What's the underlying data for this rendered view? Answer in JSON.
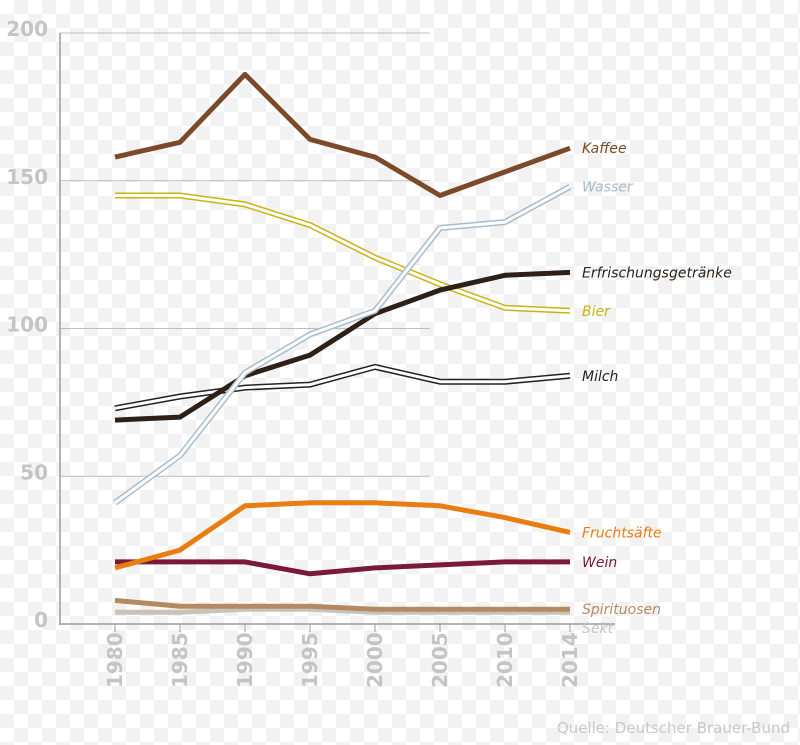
{
  "chart_data": {
    "type": "line",
    "title": "",
    "xlabel": "",
    "ylabel": "",
    "x": [
      "1980",
      "1985",
      "1990",
      "1995",
      "2000",
      "2005",
      "2010",
      "2014"
    ],
    "ylim": [
      0,
      200
    ],
    "yticks": [
      "0",
      "50",
      "100",
      "150",
      "200"
    ],
    "grid": true,
    "source": "Quelle: Deutscher Brauer-Bund",
    "series": [
      {
        "name": "Kaffee",
        "color": "#7a4a2a",
        "outline": false,
        "values": [
          158,
          163,
          186,
          164,
          158,
          145,
          153,
          161
        ]
      },
      {
        "name": "Wasser",
        "color": "#a9bccb",
        "outline": true,
        "values": [
          41,
          57,
          85,
          98,
          106,
          134,
          136,
          148
        ]
      },
      {
        "name": "Erfrischungsgetränke",
        "color": "#2e2016",
        "outline": false,
        "values": [
          69,
          70,
          84,
          91,
          105,
          113,
          118,
          119
        ]
      },
      {
        "name": "Bier",
        "color": "#c9b412",
        "outline": true,
        "values": [
          145,
          145,
          142,
          135,
          124,
          115,
          107,
          106
        ]
      },
      {
        "name": "Milch",
        "color": "#222222",
        "outline": true,
        "values": [
          73,
          77,
          80,
          81,
          87,
          82,
          82,
          84
        ]
      },
      {
        "name": "Fruchtsäfte",
        "color": "#ea7d12",
        "outline": false,
        "values": [
          19,
          25,
          40,
          41,
          41,
          40,
          36,
          31
        ]
      },
      {
        "name": "Wein",
        "color": "#7a1a3a",
        "outline": false,
        "values": [
          21,
          21,
          21,
          17,
          19,
          20,
          21,
          21
        ]
      },
      {
        "name": "Spirituosen",
        "color": "#b58a62",
        "outline": false,
        "values": [
          8,
          6,
          6,
          6,
          5,
          5,
          5,
          5
        ]
      },
      {
        "name": "Sekt",
        "color": "#c7c2ba",
        "outline": false,
        "values": [
          4,
          4,
          5,
          5,
          4,
          4,
          4,
          4
        ]
      }
    ]
  }
}
